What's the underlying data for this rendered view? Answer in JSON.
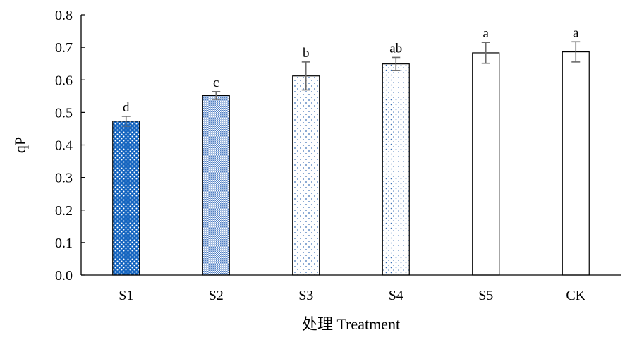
{
  "chart_data": {
    "type": "bar",
    "title": "",
    "xlabel": "处理 Treatment",
    "ylabel": "qP",
    "ylim": [
      0,
      0.8
    ],
    "yticks": [
      "0.0",
      "0.1",
      "0.2",
      "0.3",
      "0.4",
      "0.5",
      "0.6",
      "0.7",
      "0.8"
    ],
    "grid": false,
    "categories": [
      "S1",
      "S2",
      "S3",
      "S4",
      "S5",
      "CK"
    ],
    "values": [
      0.473,
      0.552,
      0.612,
      0.649,
      0.683,
      0.686
    ],
    "errors": [
      0.015,
      0.012,
      0.043,
      0.02,
      0.032,
      0.031
    ],
    "significance": [
      "d",
      "c",
      "b",
      "ab",
      "a",
      "a"
    ],
    "patterns": [
      "dense-dots-blue",
      "fine-checker-blue",
      "sparse-dots-blue",
      "sparse-dots-blue-2",
      "none",
      "none"
    ],
    "colors": {
      "bar_fill_s1": "#1565c0",
      "bar_fill_s2": "#5b86c8",
      "dot_color": "#3a6fb5",
      "bar_outline": "#000000",
      "error_bar": "#6b6b6b"
    }
  }
}
